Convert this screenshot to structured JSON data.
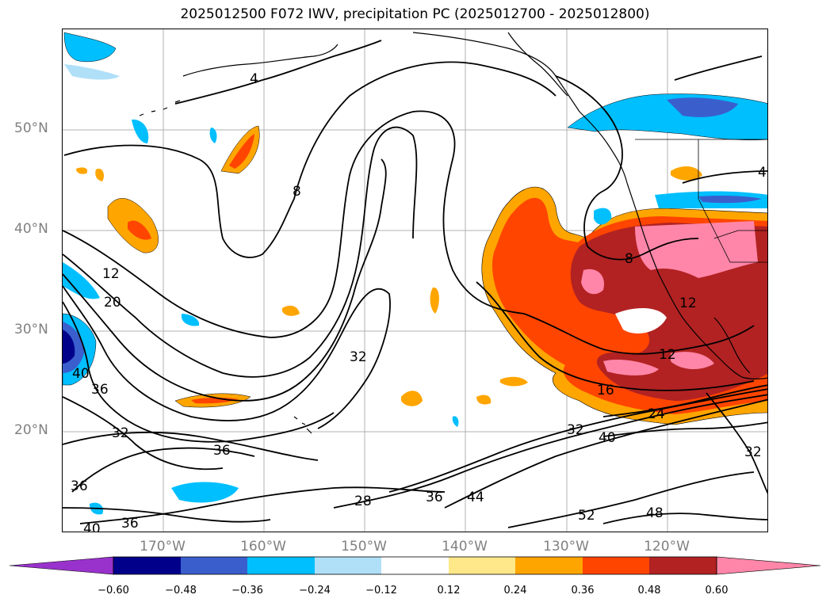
{
  "title": "2025012500 F072 IWV, precipitation PC (2025012700 - 2025012800)",
  "lat_labels": [
    "50°N",
    "40°N",
    "30°N",
    "20°N"
  ],
  "lon_labels": [
    "170°W",
    "160°W",
    "150°W",
    "140°W",
    "130°W",
    "120°W"
  ],
  "contour_labels": [
    "4",
    "8",
    "12",
    "20",
    "36",
    "40",
    "32",
    "36",
    "36",
    "40",
    "36",
    "28",
    "32",
    "36",
    "44",
    "52",
    "48",
    "32",
    "40",
    "24",
    "16",
    "12",
    "12",
    "8",
    "32",
    "4"
  ],
  "colorbar": {
    "tick_labels": [
      "−0.60",
      "−0.48",
      "−0.36",
      "−0.24",
      "−0.12",
      "0.12",
      "0.24",
      "0.36",
      "0.48",
      "0.60"
    ],
    "colors": {
      "extend_min": "#9932cc",
      "c1": "#00008b",
      "c2": "#3a5fcd",
      "c3": "#00bfff",
      "c4": "#b0e0f8",
      "c5": "#ffffff",
      "c6": "#ffe88a",
      "c7": "#ffa500",
      "c8": "#ff4500",
      "c9": "#b22222",
      "extend_max": "#ff86a9"
    }
  }
}
